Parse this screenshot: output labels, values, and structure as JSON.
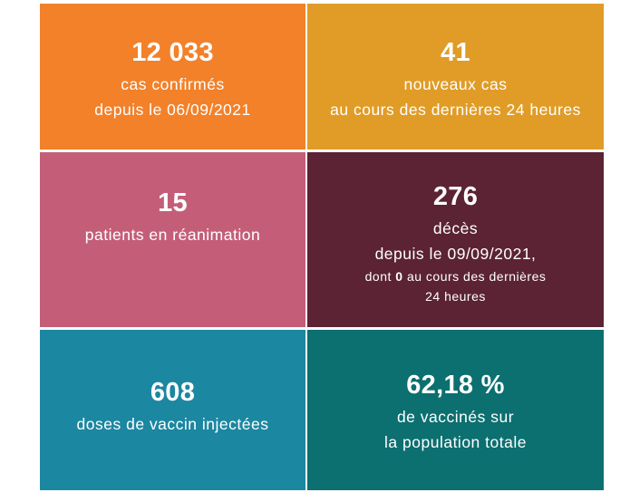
{
  "colors": {
    "orange": "#f2812a",
    "amber": "#e09c27",
    "rose": "#c45e78",
    "maroon": "#5b2333",
    "teal_blue": "#1b87a1",
    "dark_teal": "#0c6f70"
  },
  "tiles": {
    "cases": {
      "value": "12 033",
      "line1": "cas confirmés",
      "line2": "depuis le 06/09/2021"
    },
    "new_cases": {
      "value": "41",
      "line1": "nouveaux cas",
      "line2": "au cours des dernières 24 heures"
    },
    "icu": {
      "value": "15",
      "line1": "patients en réanimation"
    },
    "deaths": {
      "value": "276",
      "line1": "décès",
      "line2": "depuis le 09/09/2021,",
      "line3_prefix": "dont ",
      "line3_bold": "0",
      "line3_suffix": " au cours des dernières",
      "line4": "24 heures"
    },
    "doses": {
      "value": "608",
      "line1": "doses de vaccin injectées"
    },
    "vaccinated": {
      "value": "62,18 %",
      "line1": "de vaccinés sur",
      "line2": "la population totale"
    }
  }
}
